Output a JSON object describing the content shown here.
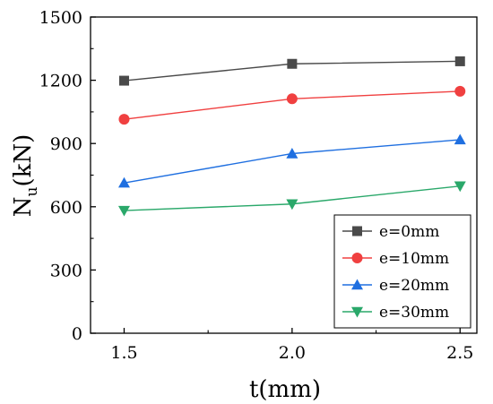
{
  "chart_data": {
    "type": "line",
    "x": [
      1.5,
      2.0,
      2.5
    ],
    "x_tick_labels": [
      "1.5",
      "2.0",
      "2.5"
    ],
    "y_tick_values": [
      0,
      300,
      600,
      900,
      1200,
      1500
    ],
    "y_tick_labels": [
      "0",
      "300",
      "600",
      "900",
      "1200",
      "1500"
    ],
    "xlim": [
      1.4,
      2.55
    ],
    "ylim": [
      0,
      1500
    ],
    "xlabel": "t(mm)",
    "ylabel_base": "N",
    "ylabel_sub": "u",
    "ylabel_suffix": "(kN)",
    "grid": false,
    "legend_position": "bottom-right",
    "series": [
      {
        "name": "e=0mm",
        "values": [
          1198,
          1278,
          1290
        ],
        "color": "#4a4a4a",
        "marker": "square"
      },
      {
        "name": "e=10mm",
        "values": [
          1015,
          1112,
          1148
        ],
        "color": "#f04040",
        "marker": "circle"
      },
      {
        "name": "e=20mm",
        "values": [
          713,
          852,
          918
        ],
        "color": "#1f6fe0",
        "marker": "triangle-up"
      },
      {
        "name": "e=30mm",
        "values": [
          582,
          613,
          698
        ],
        "color": "#2aa86a",
        "marker": "triangle-down"
      }
    ]
  }
}
